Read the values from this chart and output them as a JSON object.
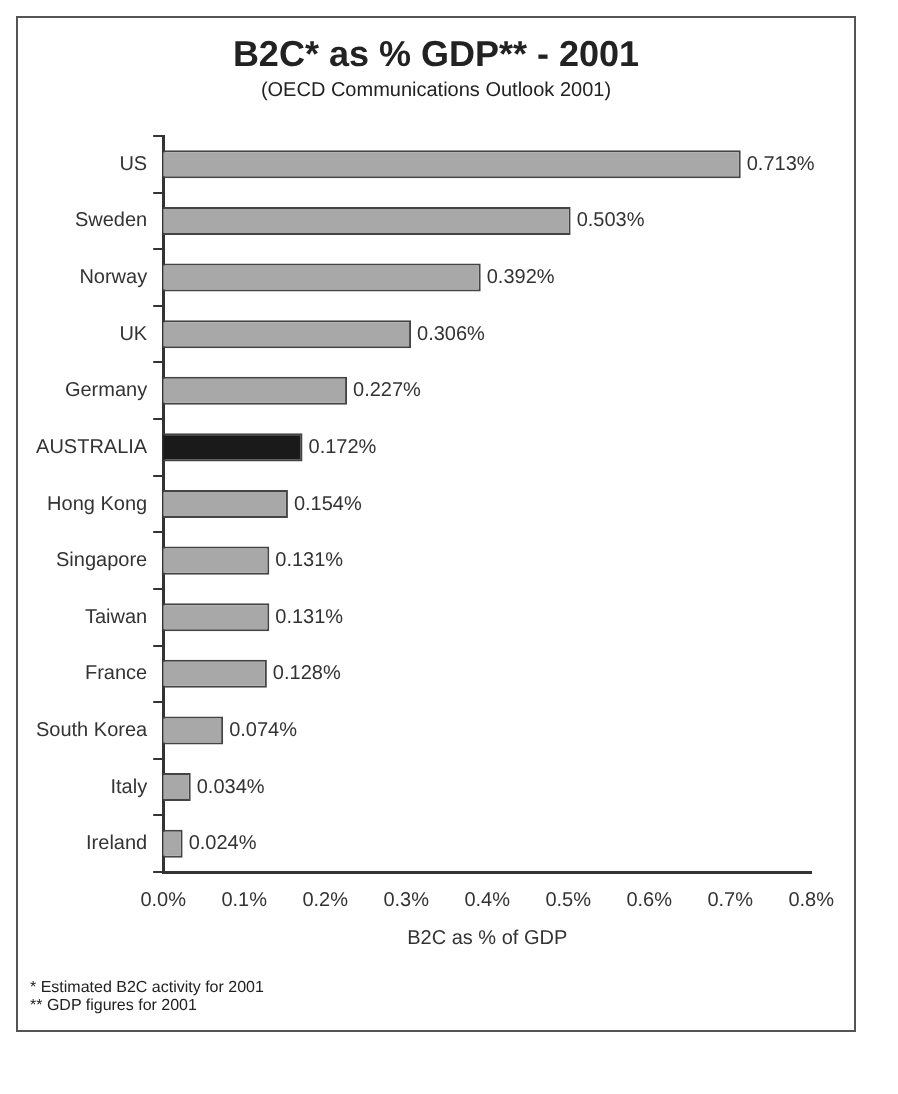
{
  "chart_data": {
    "type": "bar",
    "orientation": "horizontal",
    "title": "B2C* as % GDP** - 2001",
    "subtitle": "(OECD Communications Outlook 2001)",
    "xlabel": "B2C as % of GDP",
    "categories": [
      "US",
      "Sweden",
      "Norway",
      "UK",
      "Germany",
      "AUSTRALIA",
      "Hong Kong",
      "Singapore",
      "Taiwan",
      "France",
      "South Korea",
      "Italy",
      "Ireland"
    ],
    "values": [
      0.713,
      0.503,
      0.392,
      0.306,
      0.227,
      0.172,
      0.154,
      0.131,
      0.131,
      0.128,
      0.074,
      0.034,
      0.024
    ],
    "value_labels": [
      "0.713%",
      "0.503%",
      "0.392%",
      "0.306%",
      "0.227%",
      "0.172%",
      "0.154%",
      "0.131%",
      "0.131%",
      "0.128%",
      "0.074%",
      "0.034%",
      "0.024%"
    ],
    "colors": [
      "#a8a8a8",
      "#a8a8a8",
      "#a8a8a8",
      "#a8a8a8",
      "#a8a8a8",
      "#1a1a1a",
      "#a8a8a8",
      "#a8a8a8",
      "#a8a8a8",
      "#a8a8a8",
      "#a8a8a8",
      "#a8a8a8",
      "#a8a8a8"
    ],
    "xlim": [
      0,
      0.8
    ],
    "xticks": [
      {
        "value": 0,
        "label": "0.0%"
      },
      {
        "value": 0.1,
        "label": "0.1%"
      },
      {
        "value": 0.2,
        "label": "0.2%"
      },
      {
        "value": 0.3,
        "label": "0.3%"
      },
      {
        "value": 0.4,
        "label": "0.4%"
      },
      {
        "value": 0.5,
        "label": "0.5%"
      },
      {
        "value": 0.6,
        "label": "0.6%"
      },
      {
        "value": 0.7,
        "label": "0.7%"
      },
      {
        "value": 0.8,
        "label": "0.8%"
      }
    ],
    "grid": false,
    "legend": false,
    "annotations": [
      "* Estimated B2C activity for 2001",
      "** GDP figures for 2001"
    ]
  }
}
